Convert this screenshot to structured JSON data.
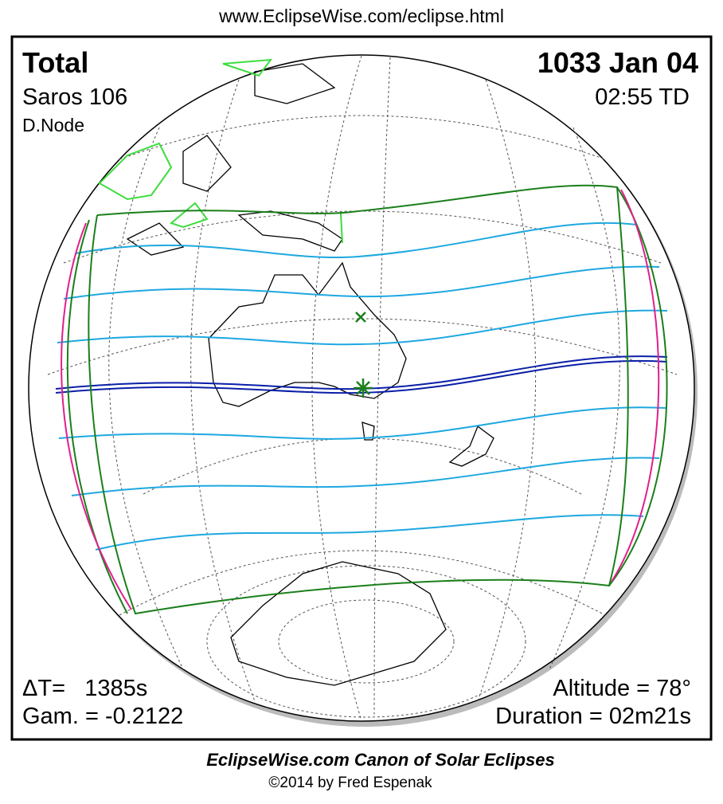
{
  "header": {
    "url": "www.EclipseWise.com/eclipse.html"
  },
  "panel": {
    "eclipse_type": "Total",
    "saros": "Saros 106",
    "node": "D.Node",
    "date": "1033 Jan 04",
    "time": "02:55 TD",
    "delta_t": "ΔT=   1385s",
    "gamma": "Gam. = -0.2122",
    "altitude": "Altitude = 78°",
    "duration": "Duration = 02m21s"
  },
  "footer": {
    "title": "EclipseWise.com Canon of Solar Eclipses",
    "credit": "©2014 by Fred Espenak"
  }
}
